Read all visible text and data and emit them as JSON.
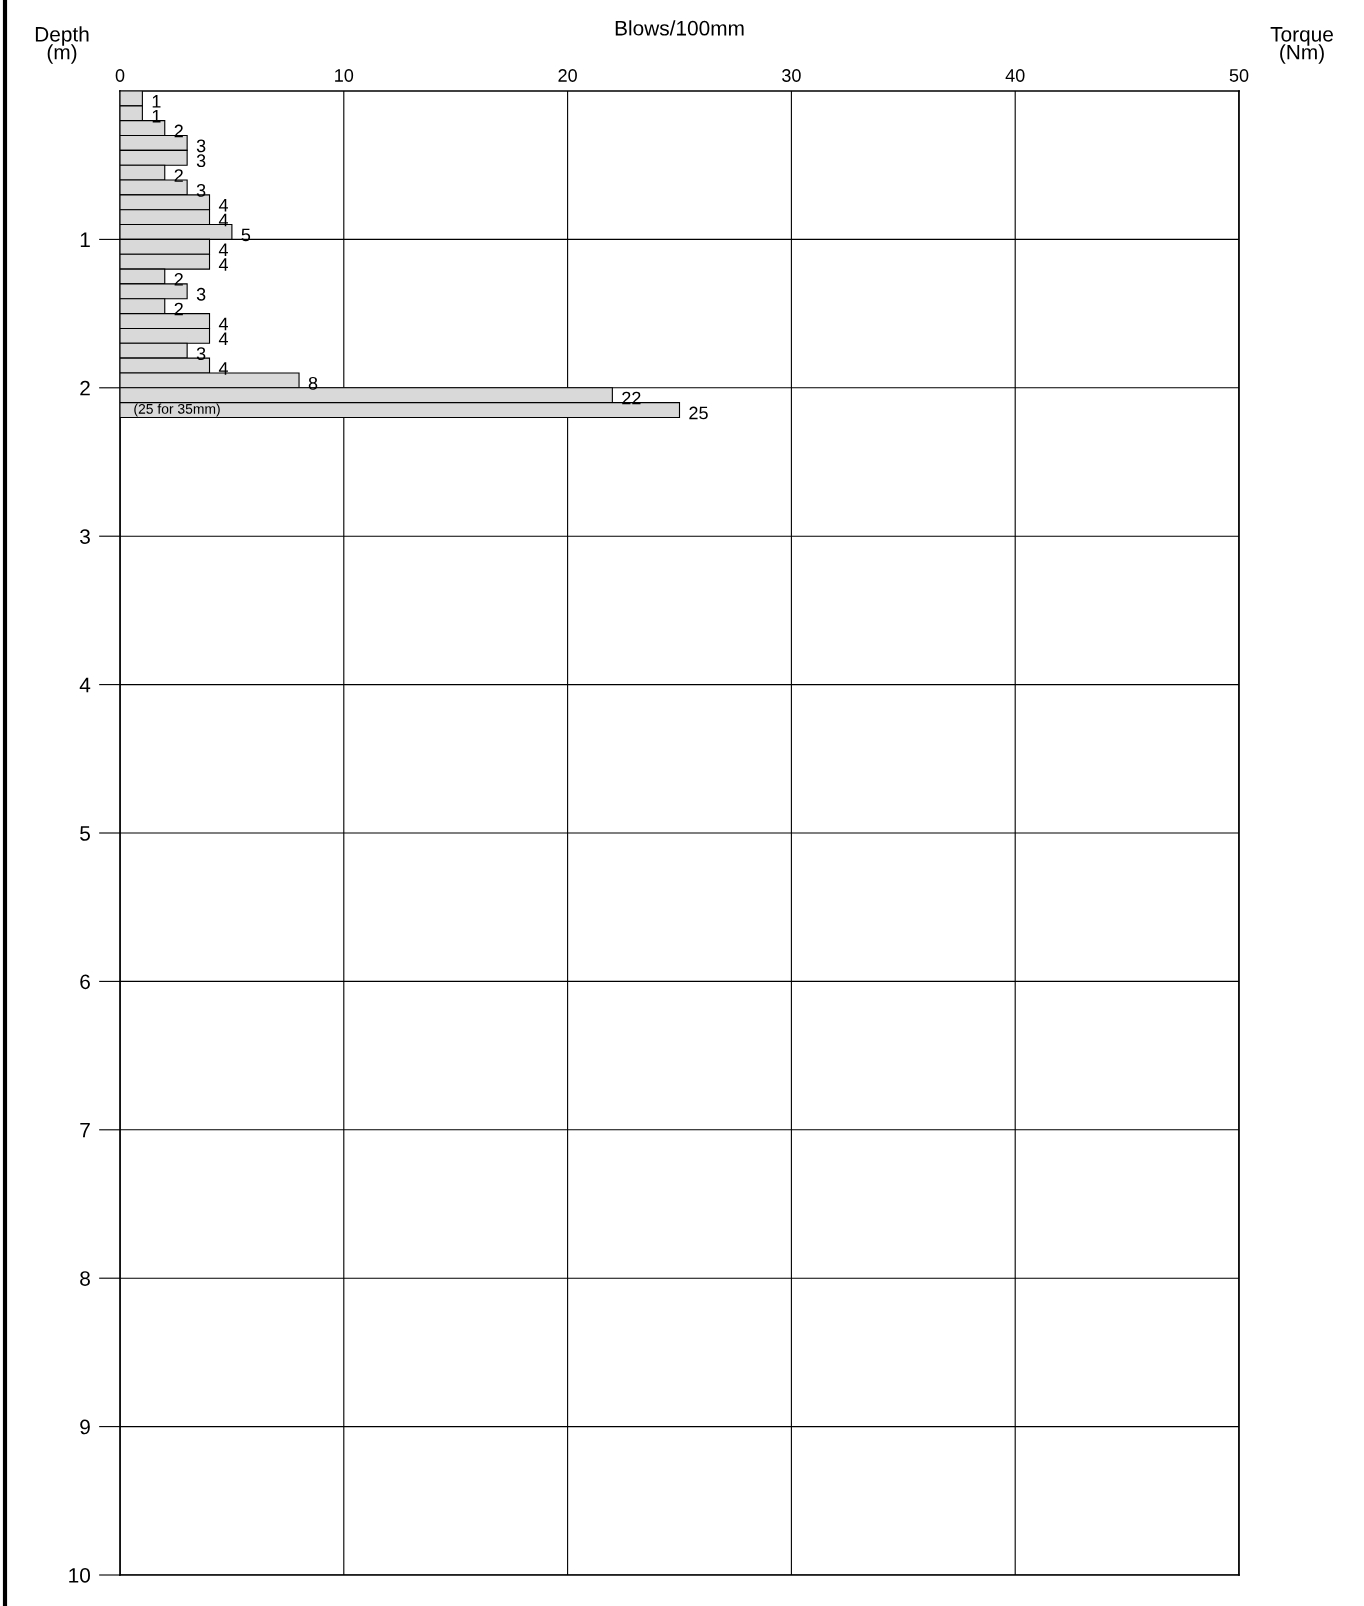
{
  "chart_data": {
    "type": "bar",
    "orientation": "horizontal",
    "xlabel": "Blows/100mm",
    "ylabel": "Depth\n(m)",
    "y2label": "Torque\n(Nm)",
    "x": [
      0.05,
      0.15,
      0.25,
      0.35,
      0.45,
      0.55,
      0.65,
      0.75,
      0.85,
      0.95,
      1.05,
      1.15,
      1.25,
      1.35,
      1.45,
      1.55,
      1.65,
      1.75,
      1.85,
      1.95,
      2.05,
      2.15
    ],
    "values": [
      1,
      1,
      2,
      3,
      3,
      2,
      3,
      4,
      4,
      5,
      4,
      4,
      2,
      3,
      2,
      4,
      4,
      3,
      4,
      8,
      22,
      25
    ],
    "color": "#d9d9d9",
    "data_labels": true,
    "xlim": [
      0,
      50
    ],
    "xticks": [
      0,
      10,
      20,
      30,
      40,
      50
    ],
    "ylim": [
      10,
      0
    ],
    "yticks": [
      1,
      2,
      3,
      4,
      5,
      6,
      7,
      8,
      9,
      10
    ],
    "grid": true,
    "annotations": [
      "(25 for 35mm)"
    ]
  }
}
